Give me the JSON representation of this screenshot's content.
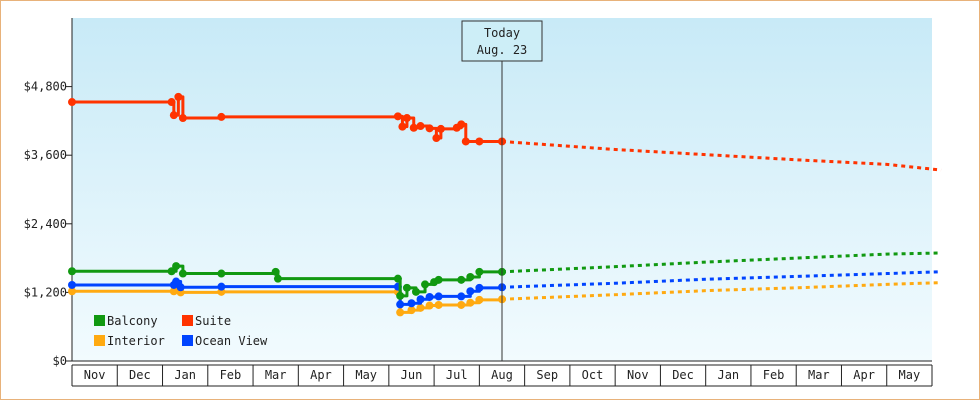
{
  "chart_data": {
    "type": "line",
    "y_ticks": [
      "$0",
      "$1,200",
      "$2,400",
      "$3,600",
      "$4,800"
    ],
    "ylim": [
      0,
      6000
    ],
    "x_months": [
      "Nov",
      "Dec",
      "Jan",
      "Feb",
      "Mar",
      "Apr",
      "May",
      "Jun",
      "Jul",
      "Aug",
      "Sep",
      "Oct",
      "Nov",
      "Dec",
      "Jan",
      "Feb",
      "Mar",
      "Apr",
      "May"
    ],
    "today_label": "Today",
    "today_date": "Aug. 23",
    "today_x": 9.5,
    "grid": false,
    "legend_position": "bottom-left",
    "series": [
      {
        "name": "Suite",
        "color": "#ff3300",
        "points": [
          [
            0,
            4530
          ],
          [
            2.2,
            4530
          ],
          [
            2.25,
            4300
          ],
          [
            2.35,
            4620
          ],
          [
            2.45,
            4250
          ],
          [
            3.3,
            4270
          ],
          [
            7.2,
            4280
          ],
          [
            7.3,
            4100
          ],
          [
            7.4,
            4250
          ],
          [
            7.55,
            4080
          ],
          [
            7.7,
            4110
          ],
          [
            7.9,
            4070
          ],
          [
            8.05,
            3900
          ],
          [
            8.15,
            4060
          ],
          [
            8.5,
            4080
          ],
          [
            8.6,
            4140
          ],
          [
            8.7,
            3840
          ],
          [
            9.0,
            3840
          ],
          [
            9.5,
            3840
          ]
        ],
        "forecast": [
          [
            9.5,
            3840
          ],
          [
            12,
            3700
          ],
          [
            14,
            3610
          ],
          [
            16,
            3520
          ],
          [
            18,
            3440
          ],
          [
            19.2,
            3340
          ]
        ]
      },
      {
        "name": "Balcony",
        "color": "#119911",
        "points": [
          [
            0,
            1570
          ],
          [
            2.2,
            1570
          ],
          [
            2.3,
            1660
          ],
          [
            2.45,
            1530
          ],
          [
            3.3,
            1530
          ],
          [
            4.5,
            1560
          ],
          [
            4.55,
            1440
          ],
          [
            7.2,
            1440
          ],
          [
            7.25,
            1140
          ],
          [
            7.4,
            1280
          ],
          [
            7.6,
            1210
          ],
          [
            7.8,
            1340
          ],
          [
            8.0,
            1380
          ],
          [
            8.1,
            1420
          ],
          [
            8.6,
            1420
          ],
          [
            8.8,
            1470
          ],
          [
            9.0,
            1560
          ],
          [
            9.5,
            1560
          ]
        ],
        "forecast": [
          [
            9.5,
            1560
          ],
          [
            12,
            1650
          ],
          [
            14,
            1730
          ],
          [
            16,
            1800
          ],
          [
            18,
            1870
          ],
          [
            19.2,
            1890
          ]
        ]
      },
      {
        "name": "Ocean View",
        "color": "#0044ff",
        "points": [
          [
            0,
            1330
          ],
          [
            2.25,
            1330
          ],
          [
            2.3,
            1390
          ],
          [
            2.4,
            1290
          ],
          [
            3.3,
            1300
          ],
          [
            7.2,
            1300
          ],
          [
            7.25,
            990
          ],
          [
            7.5,
            1010
          ],
          [
            7.7,
            1080
          ],
          [
            7.9,
            1120
          ],
          [
            8.1,
            1130
          ],
          [
            8.6,
            1130
          ],
          [
            8.8,
            1220
          ],
          [
            9.0,
            1280
          ],
          [
            9.5,
            1290
          ]
        ],
        "forecast": [
          [
            9.5,
            1290
          ],
          [
            12,
            1360
          ],
          [
            14,
            1430
          ],
          [
            16,
            1480
          ],
          [
            18,
            1530
          ],
          [
            19.2,
            1560
          ]
        ]
      },
      {
        "name": "Interior",
        "color": "#ffaa11",
        "points": [
          [
            0,
            1220
          ],
          [
            2.25,
            1220
          ],
          [
            2.3,
            1250
          ],
          [
            2.4,
            1200
          ],
          [
            3.3,
            1210
          ],
          [
            7.2,
            1210
          ],
          [
            7.25,
            850
          ],
          [
            7.5,
            890
          ],
          [
            7.7,
            930
          ],
          [
            7.9,
            970
          ],
          [
            8.1,
            980
          ],
          [
            8.6,
            980
          ],
          [
            8.8,
            1020
          ],
          [
            9.0,
            1070
          ],
          [
            9.5,
            1080
          ]
        ],
        "forecast": [
          [
            9.5,
            1080
          ],
          [
            12,
            1160
          ],
          [
            14,
            1230
          ],
          [
            16,
            1280
          ],
          [
            18,
            1340
          ],
          [
            19.2,
            1370
          ]
        ]
      }
    ]
  }
}
